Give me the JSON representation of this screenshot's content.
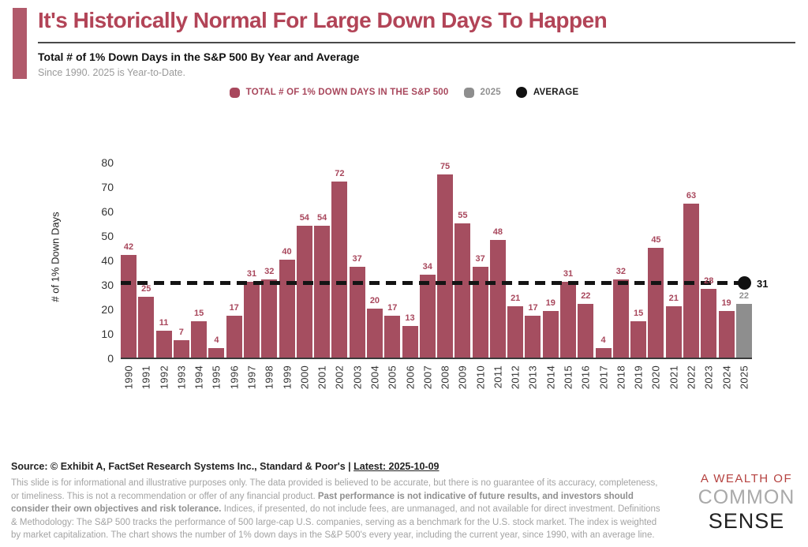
{
  "header": {
    "title": "It's Historically Normal For Large Down Days To Happen",
    "subtitle": "Total # of 1% Down Days in the S&P 500 By Year and Average",
    "note": "Since 1990. 2025 is Year-to-Date."
  },
  "legend": {
    "items": [
      {
        "label": "TOTAL # OF 1% DOWN DAYS IN THE S&P 500",
        "color": "#a8475c",
        "shape": "rounded-square"
      },
      {
        "label": "2025",
        "color": "#8e8e8e",
        "shape": "rounded-square"
      },
      {
        "label": "AVERAGE",
        "color": "#111111",
        "shape": "circle"
      }
    ]
  },
  "chart_data": {
    "type": "bar",
    "title": "Total # of 1% Down Days in the S&P 500 By Year and Average",
    "xlabel": "",
    "ylabel": "# of 1% Down Days",
    "ylim": [
      0,
      80
    ],
    "yticks": [
      0,
      10,
      20,
      30,
      40,
      50,
      60,
      70,
      80
    ],
    "grid": false,
    "legend_position": "top",
    "bar_color": "#a54e60",
    "highlight_category": "2025",
    "highlight_color": "#8e8e8e",
    "categories": [
      "1990",
      "1991",
      "1992",
      "1993",
      "1994",
      "1995",
      "1996",
      "1997",
      "1998",
      "1999",
      "2000",
      "2001",
      "2002",
      "2003",
      "2004",
      "2005",
      "2006",
      "2007",
      "2008",
      "2009",
      "2010",
      "2011",
      "2012",
      "2013",
      "2014",
      "2015",
      "2016",
      "2017",
      "2018",
      "2019",
      "2020",
      "2021",
      "2022",
      "2023",
      "2024",
      "2025"
    ],
    "values": [
      42,
      25,
      11,
      7,
      15,
      4,
      17,
      31,
      32,
      40,
      54,
      54,
      72,
      37,
      20,
      17,
      13,
      34,
      75,
      55,
      37,
      48,
      21,
      17,
      19,
      31,
      22,
      4,
      32,
      15,
      45,
      21,
      63,
      28,
      19,
      22
    ],
    "average": 31,
    "average_label": "31"
  },
  "footer": {
    "source_prefix": "Source: © Exhibit A, FactSet Research Systems Inc., Standard & Poor's | ",
    "source_latest": "Latest: 2025-10-09",
    "disclaimer_part1": "This slide is for informational and illustrative purposes only. The data provided is believed to be accurate, but there is no guarantee of its accuracy, completeness, or timeliness. This is not a recommendation or offer of any financial product. ",
    "disclaimer_bold": "Past performance is not indicative of future results, and investors should consider their own objectives and risk tolerance.",
    "disclaimer_part2": " Indices, if presented, do not include fees, are unmanaged, and not available for direct investment. Definitions & Methodology: The S&P 500 tracks the performance of 500 large-cap U.S. companies, serving as a benchmark for the U.S. stock market. The index is weighted by market capitalization. The chart shows the number of 1% down days in the S&P 500's every year, including the current year, since 1990, with an average line."
  },
  "logo": {
    "line1": "A WEALTH OF",
    "line2": "COMMON",
    "line3": "SENSE"
  }
}
